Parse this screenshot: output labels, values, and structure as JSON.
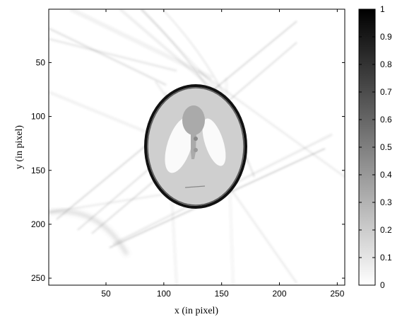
{
  "chart_data": {
    "type": "heatmap",
    "title": "",
    "xlabel": "x (in pixel)",
    "ylabel": "y (in pixel)",
    "xlim": [
      1,
      256
    ],
    "ylim": [
      1,
      256
    ],
    "y_axis_reversed": true,
    "xticks": [
      50,
      100,
      150,
      200,
      250
    ],
    "yticks": [
      50,
      100,
      150,
      200,
      250
    ],
    "colormap": "gray (0 = white, 1 = black)",
    "colorbar": {
      "range": [
        0,
        1
      ],
      "ticks": [
        "0",
        "0.1",
        "0.2",
        "0.3",
        "0.4",
        "0.5",
        "0.6",
        "0.7",
        "0.8",
        "0.9",
        "1"
      ]
    },
    "image_content": "Shepp-Logan phantom reconstruction with streak artifacts; bright elliptical ring centered near (130,128)"
  }
}
